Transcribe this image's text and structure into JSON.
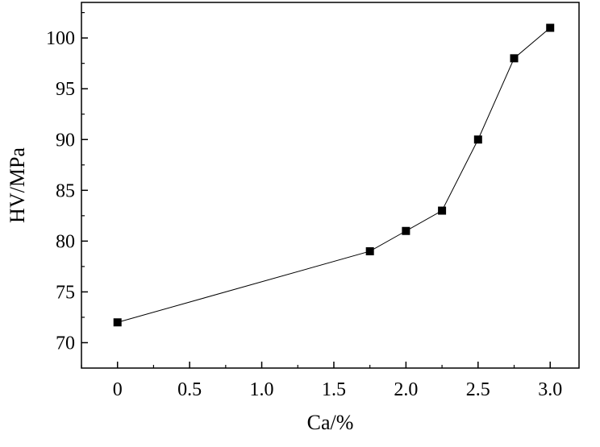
{
  "chart_data": {
    "type": "line",
    "title": "",
    "xlabel": "Ca/%",
    "ylabel": "HV/MPa",
    "xlim": [
      -0.25,
      3.2
    ],
    "ylim": [
      67.5,
      103.5
    ],
    "x_ticks": [
      0,
      0.5,
      1.0,
      1.5,
      2.0,
      2.5,
      3.0
    ],
    "x_tick_labels": [
      "0",
      "0.5",
      "1.0",
      "1.5",
      "2.0",
      "2.5",
      "3.0"
    ],
    "y_ticks": [
      70,
      75,
      80,
      85,
      90,
      95,
      100
    ],
    "y_tick_labels": [
      "70",
      "75",
      "80",
      "85",
      "90",
      "95",
      "100"
    ],
    "grid": false,
    "series": [
      {
        "marker": "square",
        "color": "#000000",
        "x": [
          0,
          1.75,
          2.0,
          2.25,
          2.5,
          2.75,
          3.0
        ],
        "y": [
          72,
          79,
          81,
          83,
          90,
          98,
          101
        ]
      }
    ]
  }
}
